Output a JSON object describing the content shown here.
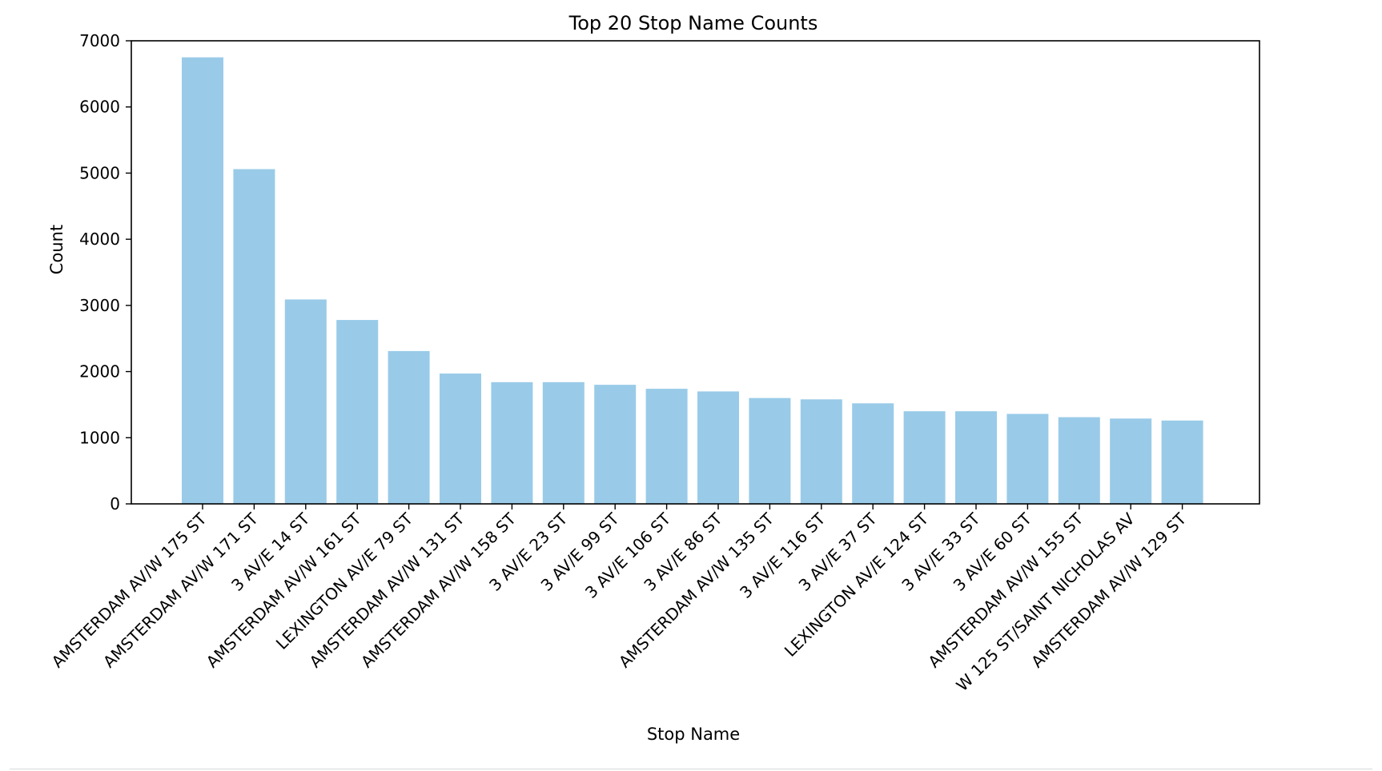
{
  "chart_data": {
    "type": "bar",
    "title": "Top 20 Stop Name Counts",
    "xlabel": "Stop Name",
    "ylabel": "Count",
    "categories": [
      "AMSTERDAM AV/W 175 ST",
      "AMSTERDAM AV/W 171 ST",
      "3 AV/E 14 ST",
      "AMSTERDAM AV/W 161 ST",
      "LEXINGTON AV/E 79 ST",
      "AMSTERDAM AV/W 131 ST",
      "AMSTERDAM AV/W 158 ST",
      "3 AV/E 23 ST",
      "3 AV/E 99 ST",
      "3 AV/E 106 ST",
      "3 AV/E 86 ST",
      "AMSTERDAM AV/W 135 ST",
      "3 AV/E 116 ST",
      "3 AV/E 37 ST",
      "LEXINGTON AV/E 124 ST",
      "3 AV/E 33 ST",
      "3 AV/E 60 ST",
      "AMSTERDAM AV/W 155 ST",
      "W 125 ST/SAINT NICHOLAS AV",
      "AMSTERDAM AV/W 129 ST"
    ],
    "values": [
      6750,
      5060,
      3090,
      2780,
      2310,
      1970,
      1840,
      1840,
      1800,
      1740,
      1700,
      1600,
      1580,
      1520,
      1400,
      1400,
      1360,
      1310,
      1290,
      1260
    ],
    "ylim": [
      0,
      7000
    ],
    "yticks": [
      0,
      1000,
      2000,
      3000,
      4000,
      5000,
      6000,
      7000
    ],
    "grid": false,
    "legend": "none",
    "bar_color": "#99cbe8",
    "axis_color": "#000000"
  }
}
